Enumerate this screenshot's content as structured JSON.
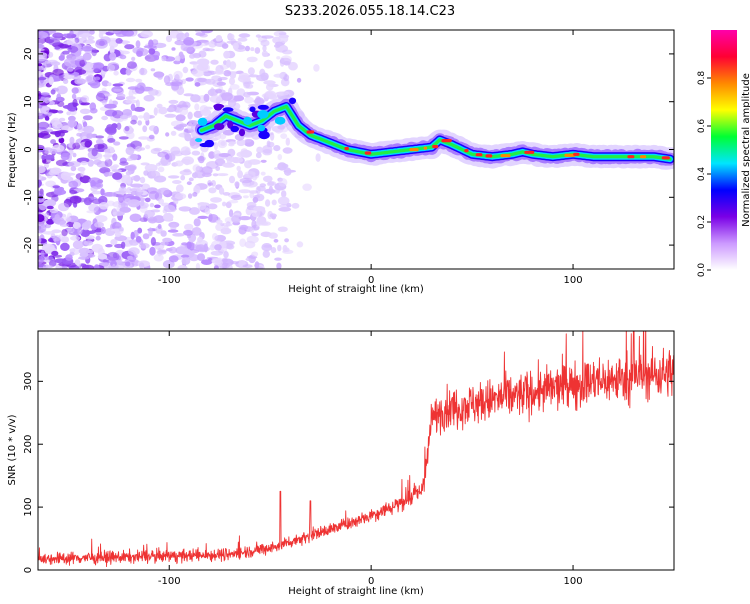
{
  "title": "S233.2026.055.18.14.C23",
  "chart_data": [
    {
      "type": "heatmap",
      "name": "spectrogram",
      "xlabel": "Height of straight line (km)",
      "ylabel": "Frequency (Hz)",
      "xlim": [
        -165,
        150
      ],
      "ylim": [
        -25,
        25
      ],
      "xticks": [
        -100,
        0,
        100
      ],
      "yticks": [
        -20,
        -10,
        0,
        10,
        20
      ],
      "colorbar": {
        "label": "Normalized spectral amplitude",
        "range": [
          0,
          1
        ],
        "ticks": [
          0.0,
          0.2,
          0.4,
          0.6,
          0.8
        ],
        "colors": [
          "#ffffff",
          "#cc99ff",
          "#7a00e6",
          "#0000ff",
          "#00e5ff",
          "#00ff33",
          "#ffff00",
          "#ff8800",
          "#ff0033",
          "#ff00aa"
        ]
      },
      "ridge": {
        "x": [
          -84,
          -78,
          -72,
          -66,
          -60,
          -54,
          -48,
          -42,
          -36,
          -30,
          -24,
          -18,
          -12,
          -6,
          0,
          10,
          20,
          30,
          34,
          40,
          45,
          50,
          60,
          70,
          75,
          80,
          90,
          100,
          110,
          120,
          130,
          140,
          148
        ],
        "y": [
          4,
          5,
          7,
          6,
          5,
          6,
          8,
          9,
          5,
          3,
          2,
          1,
          0,
          -0.5,
          -1,
          -0.5,
          0,
          0.5,
          2,
          1,
          0,
          -1,
          -1.5,
          -1,
          -0.5,
          -1,
          -1.5,
          -1,
          -1.5,
          -1.5,
          -1.5,
          -1.5,
          -2
        ]
      },
      "noise_region_x": [
        -165,
        -40
      ]
    },
    {
      "type": "line",
      "name": "snr",
      "xlabel": "Height of straight line (km)",
      "ylabel": "SNR (10 * v/v)",
      "xlim": [
        -165,
        150
      ],
      "ylim": [
        0,
        380
      ],
      "xticks": [
        -100,
        0,
        100
      ],
      "yticks": [
        0,
        100,
        200,
        300
      ],
      "color": "#ee3333",
      "trend": {
        "x": [
          -165,
          -100,
          -70,
          -50,
          -30,
          -10,
          10,
          25,
          28,
          30,
          35,
          60,
          100,
          150
        ],
        "y": [
          18,
          22,
          25,
          35,
          55,
          75,
          100,
          125,
          180,
          240,
          255,
          270,
          295,
          315
        ]
      },
      "spikes": [
        {
          "x": -45,
          "y": 125
        },
        {
          "x": -30,
          "y": 110
        },
        {
          "x": 130,
          "y": 380
        }
      ]
    }
  ]
}
